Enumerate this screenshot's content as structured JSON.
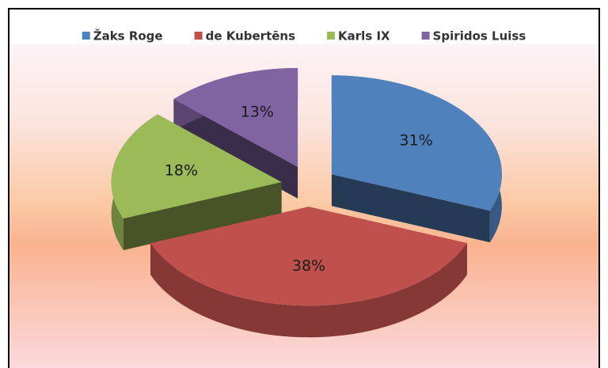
{
  "chart_data": {
    "type": "pie",
    "categories": [
      "Žaks Roge",
      "de Kubertēns",
      "Karls IX",
      "Spiridos Luiss"
    ],
    "values": [
      31,
      38,
      18,
      13
    ],
    "value_labels": [
      "31%",
      "38%",
      "18%",
      "13%"
    ],
    "colors": [
      "#4f81bd",
      "#c0504d",
      "#9bbb59",
      "#8064a2"
    ],
    "legend": "top"
  }
}
